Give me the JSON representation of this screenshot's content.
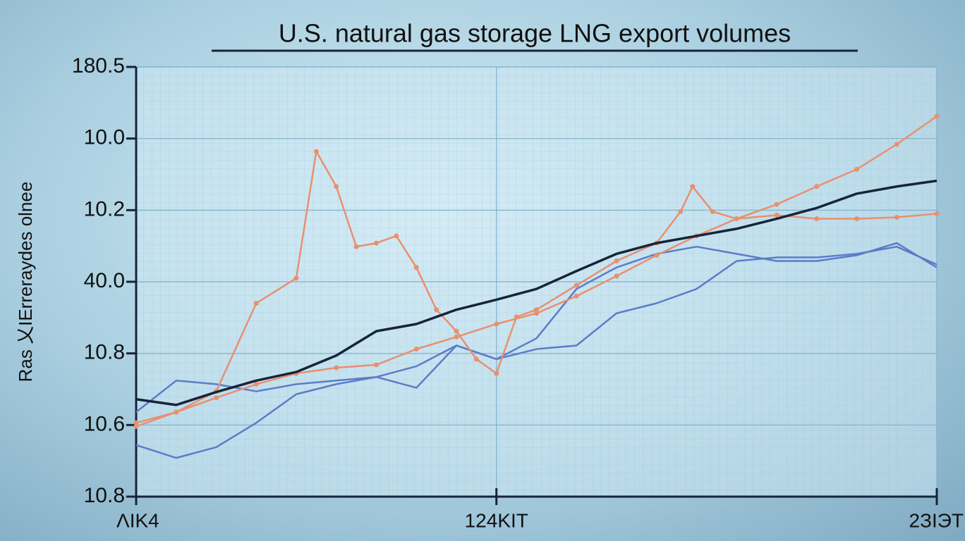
{
  "chart_data": {
    "type": "line",
    "title": "U.S. natural gas storage LNG export volumes",
    "y_label": "Ras 乂IErreraydes olnee",
    "xlim": [
      0,
      100
    ],
    "xticks": [
      {
        "value": 0,
        "label": "ɅIK4"
      },
      {
        "value": 45,
        "label": "124KIT"
      },
      {
        "value": 100,
        "label": "2ЗIЭT"
      }
    ],
    "ylim": [
      0,
      6
    ],
    "yticks": [
      {
        "value": 0,
        "label": "10.8"
      },
      {
        "value": 1,
        "label": "10.6"
      },
      {
        "value": 2,
        "label": "10.8"
      },
      {
        "value": 3,
        "label": "40.0"
      },
      {
        "value": 4,
        "label": "10.2"
      },
      {
        "value": 5,
        "label": "10.0"
      },
      {
        "value": 6,
        "label": "180.5"
      }
    ],
    "grid": true,
    "series": [
      {
        "color": "#5b7cc8",
        "markers": false,
        "x": [
          0,
          5,
          10,
          15,
          20,
          25,
          30,
          35,
          40,
          45,
          50,
          55,
          60,
          65,
          70,
          75,
          80,
          85,
          90,
          95,
          100
        ],
        "values": [
          1.18,
          1.62,
          1.57,
          1.47,
          1.57,
          1.62,
          1.67,
          1.52,
          2.11,
          1.92,
          2.21,
          2.9,
          3.2,
          3.39,
          3.49,
          3.39,
          3.29,
          3.29,
          3.37,
          3.54,
          3.2
        ]
      },
      {
        "color": "#5b7cc8",
        "markers": false,
        "x": [
          0,
          5,
          10,
          15,
          20,
          25,
          30,
          35,
          40,
          45,
          50,
          55,
          60,
          65,
          70,
          75,
          80,
          85,
          90,
          95,
          100
        ],
        "values": [
          0.72,
          0.54,
          0.69,
          1.03,
          1.43,
          1.57,
          1.67,
          1.82,
          2.11,
          1.92,
          2.06,
          2.11,
          2.56,
          2.7,
          2.9,
          3.29,
          3.34,
          3.34,
          3.39,
          3.49,
          3.24
        ]
      },
      {
        "color": "#e8906f",
        "markers": true,
        "x": [
          0,
          5,
          10,
          15,
          20,
          22.5,
          25,
          27.5,
          30,
          32.5,
          35,
          37.5,
          40,
          42.5,
          45,
          47.5,
          50,
          55,
          60,
          65,
          68,
          69.5,
          72,
          75,
          80,
          85,
          90,
          95,
          100
        ],
        "values": [
          0.98,
          1.18,
          1.47,
          2.7,
          3.05,
          4.82,
          4.33,
          3.49,
          3.54,
          3.64,
          3.2,
          2.61,
          2.31,
          1.92,
          1.72,
          2.51,
          2.61,
          2.95,
          3.29,
          3.54,
          3.98,
          4.33,
          3.98,
          3.88,
          3.93,
          3.88,
          3.88,
          3.9,
          3.95
        ]
      },
      {
        "color": "#e8906f",
        "markers": true,
        "x": [
          0,
          5,
          10,
          15,
          20,
          25,
          30,
          35,
          40,
          45,
          50,
          55,
          60,
          65,
          70,
          75,
          80,
          85,
          90,
          95,
          100
        ],
        "values": [
          1.03,
          1.18,
          1.38,
          1.57,
          1.72,
          1.8,
          1.84,
          2.06,
          2.23,
          2.41,
          2.56,
          2.8,
          3.08,
          3.37,
          3.64,
          3.88,
          4.08,
          4.33,
          4.57,
          4.92,
          5.31
        ]
      },
      {
        "color": "#16243a",
        "markers": false,
        "x": [
          0,
          5,
          10,
          15,
          20,
          25,
          30,
          35,
          40,
          45,
          50,
          55,
          60,
          65,
          70,
          75,
          80,
          85,
          90,
          95,
          100
        ],
        "values": [
          1.36,
          1.28,
          1.46,
          1.62,
          1.74,
          1.97,
          2.31,
          2.41,
          2.61,
          2.75,
          2.9,
          3.15,
          3.39,
          3.54,
          3.64,
          3.74,
          3.88,
          4.03,
          4.23,
          4.33,
          4.41
        ]
      }
    ]
  }
}
